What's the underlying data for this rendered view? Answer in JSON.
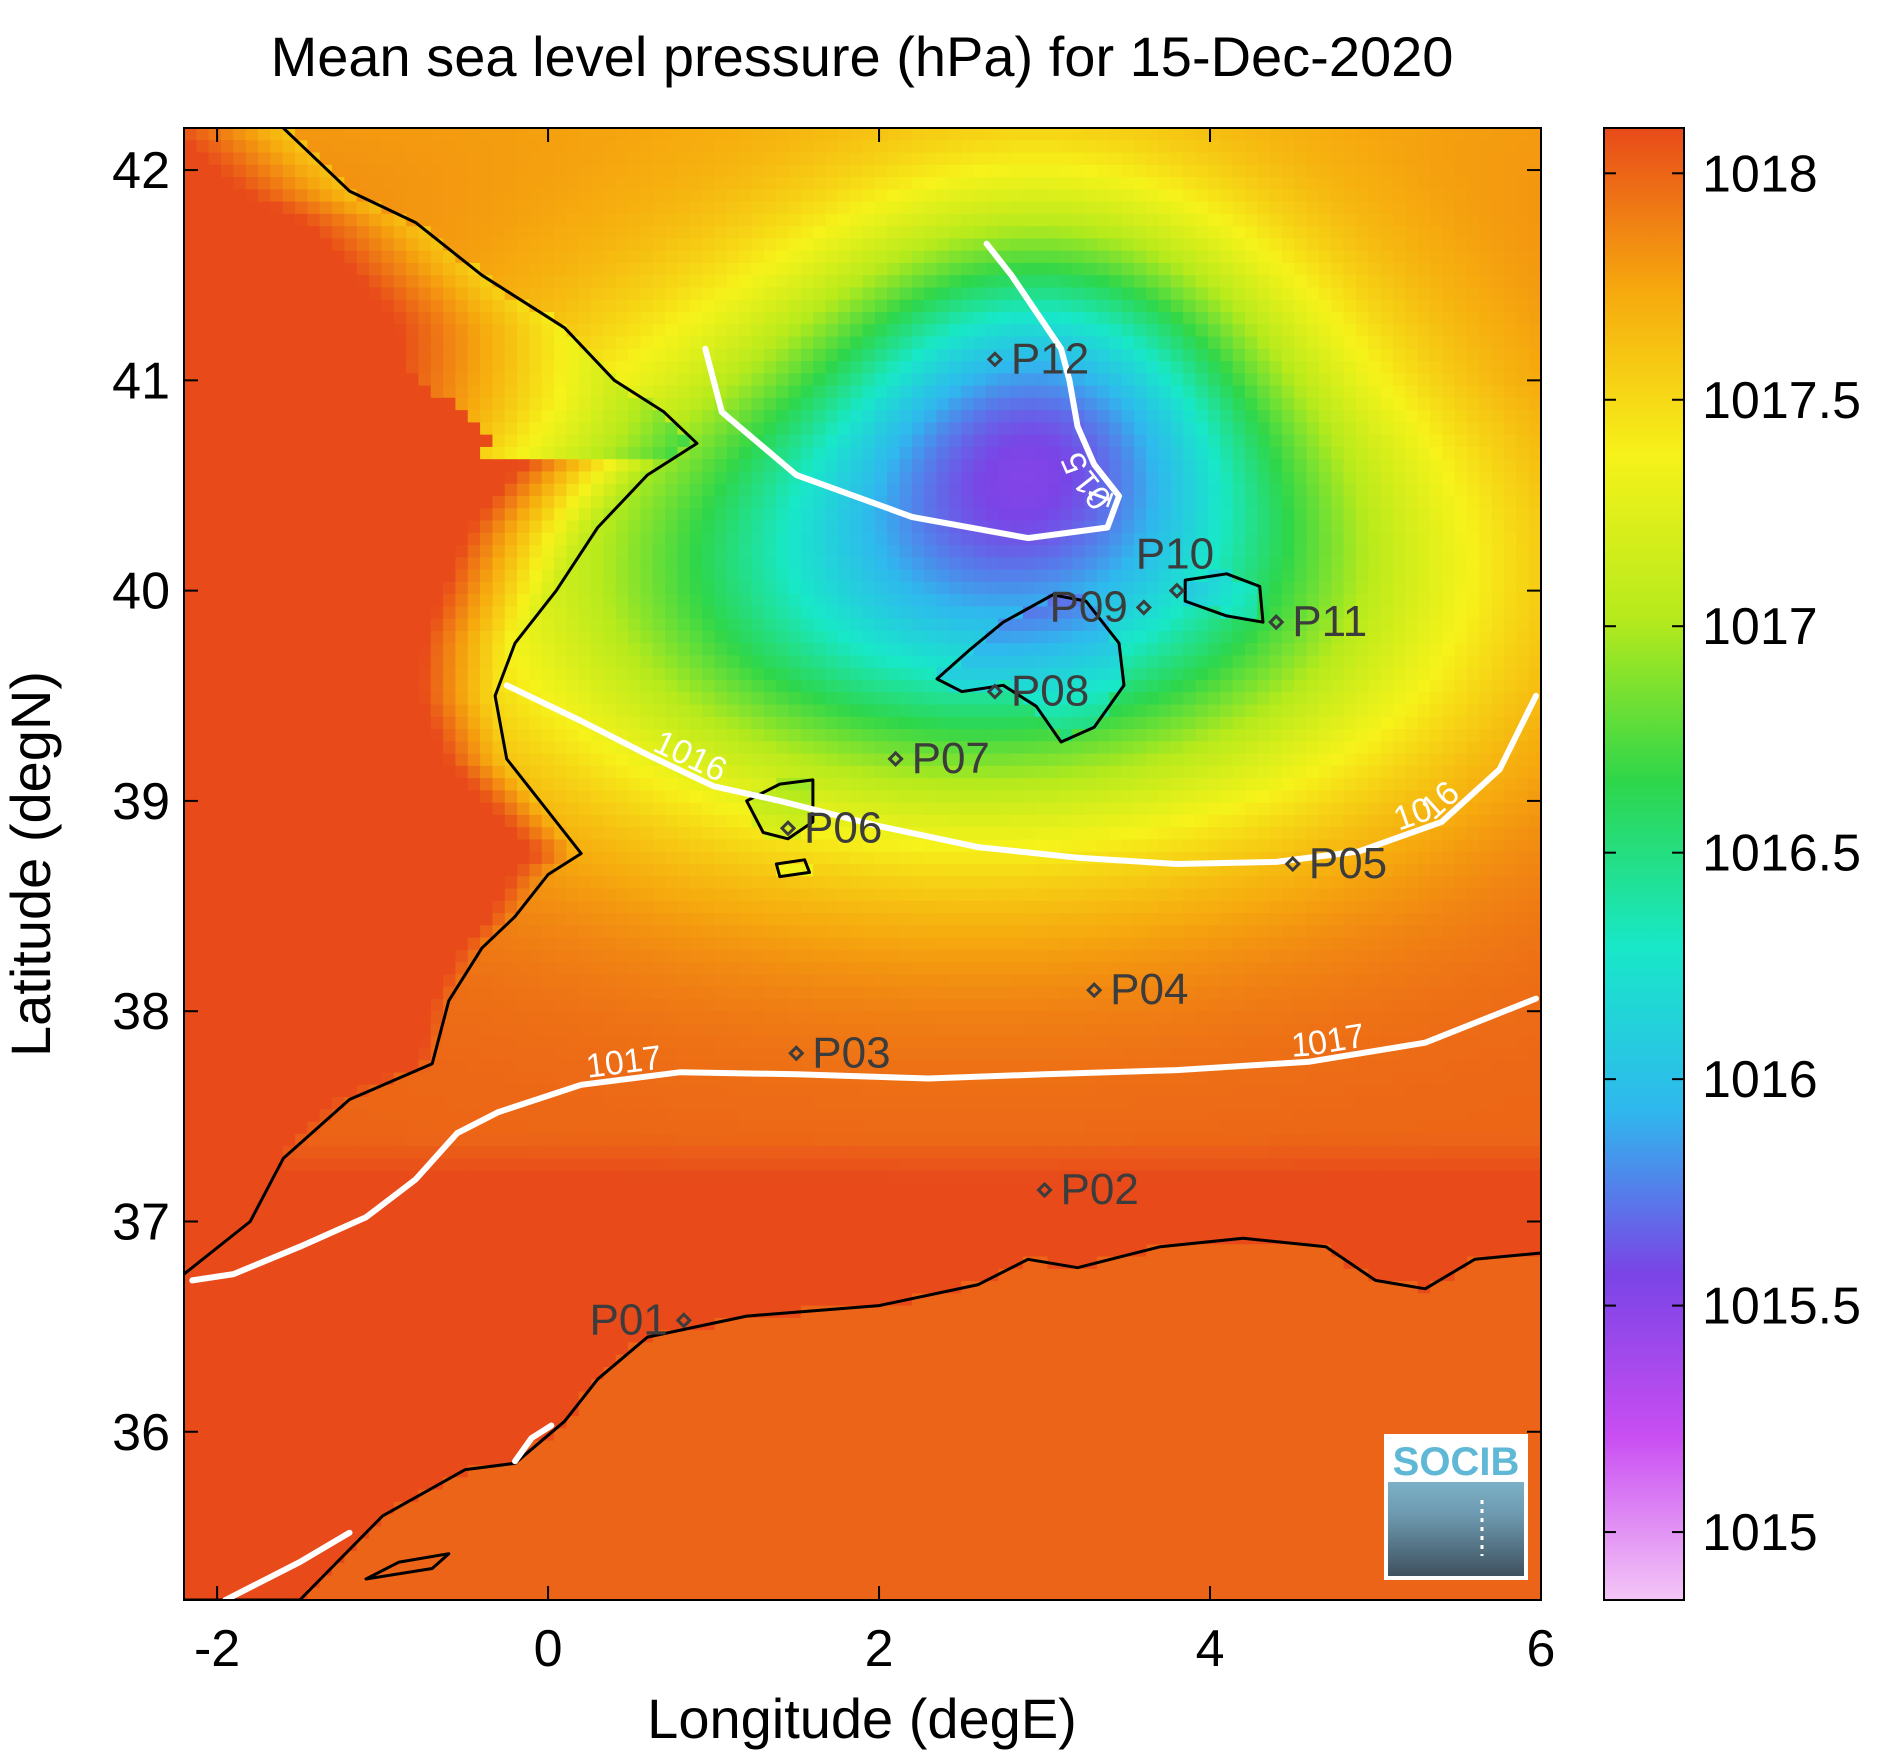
{
  "chart_data": {
    "type": "heatmap",
    "title": "Mean sea level pressure (hPa) for 15-Dec-2020",
    "xlabel": "Longitude (degE)",
    "ylabel": "Latitude (degN)",
    "xlim": [
      -2.2,
      6.0
    ],
    "ylim": [
      35.2,
      42.2
    ],
    "x_ticks": [
      -2,
      0,
      2,
      4,
      6
    ],
    "y_ticks": [
      36,
      37,
      38,
      39,
      40,
      41,
      42
    ],
    "x_tick_labels": [
      "-2",
      "0",
      "2",
      "4",
      "6"
    ],
    "y_tick_labels": [
      "36",
      "37",
      "38",
      "39",
      "40",
      "41",
      "42"
    ],
    "grid": false,
    "colorbar": {
      "placement": "right",
      "range": [
        1014.85,
        1018.1
      ],
      "ticks": [
        1015,
        1015.5,
        1016,
        1016.5,
        1017,
        1017.5,
        1018
      ],
      "tick_labels": [
        "1015",
        "1015.5",
        "1016",
        "1016.5",
        "1017",
        "1017.5",
        "1018"
      ],
      "colormap": [
        "#f4c6f6",
        "#c94ef2",
        "#7a44e6",
        "#2fb8ee",
        "#18e8c8",
        "#2ed64a",
        "#b6ea1c",
        "#f6f21a",
        "#f6a90e",
        "#e84a1a"
      ]
    },
    "contours": [
      {
        "level": 1015,
        "label": "1015",
        "points": [
          [
            0.95,
            41.15
          ],
          [
            1.05,
            40.85
          ],
          [
            1.5,
            40.55
          ],
          [
            2.2,
            40.35
          ],
          [
            2.9,
            40.25
          ],
          [
            3.38,
            40.3
          ],
          [
            3.45,
            40.45
          ],
          [
            3.3,
            40.6
          ],
          [
            3.2,
            40.78
          ],
          [
            3.15,
            41.0
          ],
          [
            3.1,
            41.15
          ],
          [
            2.8,
            41.5
          ],
          [
            2.65,
            41.65
          ]
        ]
      },
      {
        "level": 1016,
        "label": "1016",
        "points": [
          [
            -0.25,
            39.55
          ],
          [
            0.2,
            39.38
          ],
          [
            0.6,
            39.22
          ],
          [
            1.0,
            39.07
          ],
          [
            1.4,
            39.0
          ],
          [
            2.0,
            38.88
          ],
          [
            2.6,
            38.78
          ],
          [
            3.2,
            38.73
          ],
          [
            3.8,
            38.7
          ],
          [
            4.4,
            38.71
          ],
          [
            4.9,
            38.76
          ],
          [
            5.4,
            38.9
          ],
          [
            5.75,
            39.15
          ],
          [
            5.97,
            39.5
          ]
        ]
      },
      {
        "level": 1017,
        "label": "1017",
        "points": [
          [
            -2.15,
            36.72
          ],
          [
            -1.9,
            36.75
          ],
          [
            -1.5,
            36.88
          ],
          [
            -1.1,
            37.02
          ],
          [
            -0.8,
            37.2
          ],
          [
            -0.55,
            37.42
          ],
          [
            -0.3,
            37.52
          ],
          [
            0.2,
            37.65
          ],
          [
            0.8,
            37.71
          ],
          [
            1.5,
            37.7
          ],
          [
            2.3,
            37.68
          ],
          [
            3.0,
            37.7
          ],
          [
            3.8,
            37.72
          ],
          [
            4.6,
            37.76
          ],
          [
            5.3,
            37.85
          ],
          [
            5.97,
            38.06
          ]
        ]
      },
      {
        "level": 1017,
        "label": "",
        "points": [
          [
            -0.2,
            35.86
          ],
          [
            -0.1,
            35.97
          ],
          [
            0.02,
            36.03
          ]
        ]
      },
      {
        "level": 1017,
        "label": "",
        "points": [
          [
            -1.95,
            35.2
          ],
          [
            -1.5,
            35.38
          ],
          [
            -1.2,
            35.52
          ]
        ]
      }
    ],
    "points": [
      {
        "name": "P01",
        "lon": 0.82,
        "lat": 36.53,
        "label_side": "left"
      },
      {
        "name": "P02",
        "lon": 3.0,
        "lat": 37.15,
        "label_side": "right"
      },
      {
        "name": "P03",
        "lon": 1.5,
        "lat": 37.8,
        "label_side": "right"
      },
      {
        "name": "P04",
        "lon": 3.3,
        "lat": 38.1,
        "label_side": "right"
      },
      {
        "name": "P05",
        "lon": 4.5,
        "lat": 38.7,
        "label_side": "right"
      },
      {
        "name": "P06",
        "lon": 1.45,
        "lat": 38.87,
        "label_side": "right"
      },
      {
        "name": "P07",
        "lon": 2.1,
        "lat": 39.2,
        "label_side": "right"
      },
      {
        "name": "P08",
        "lon": 2.7,
        "lat": 39.52,
        "label_side": "right"
      },
      {
        "name": "P09",
        "lon": 3.6,
        "lat": 39.92,
        "label_side": "left"
      },
      {
        "name": "P10",
        "lon": 3.8,
        "lat": 40.0,
        "label_side": "above"
      },
      {
        "name": "P11",
        "lon": 4.4,
        "lat": 39.85,
        "label_side": "right"
      },
      {
        "name": "P12",
        "lon": 2.7,
        "lat": 41.1,
        "label_side": "right"
      }
    ],
    "logo": {
      "text": "SOCIB",
      "placement": "bottom-right"
    }
  }
}
